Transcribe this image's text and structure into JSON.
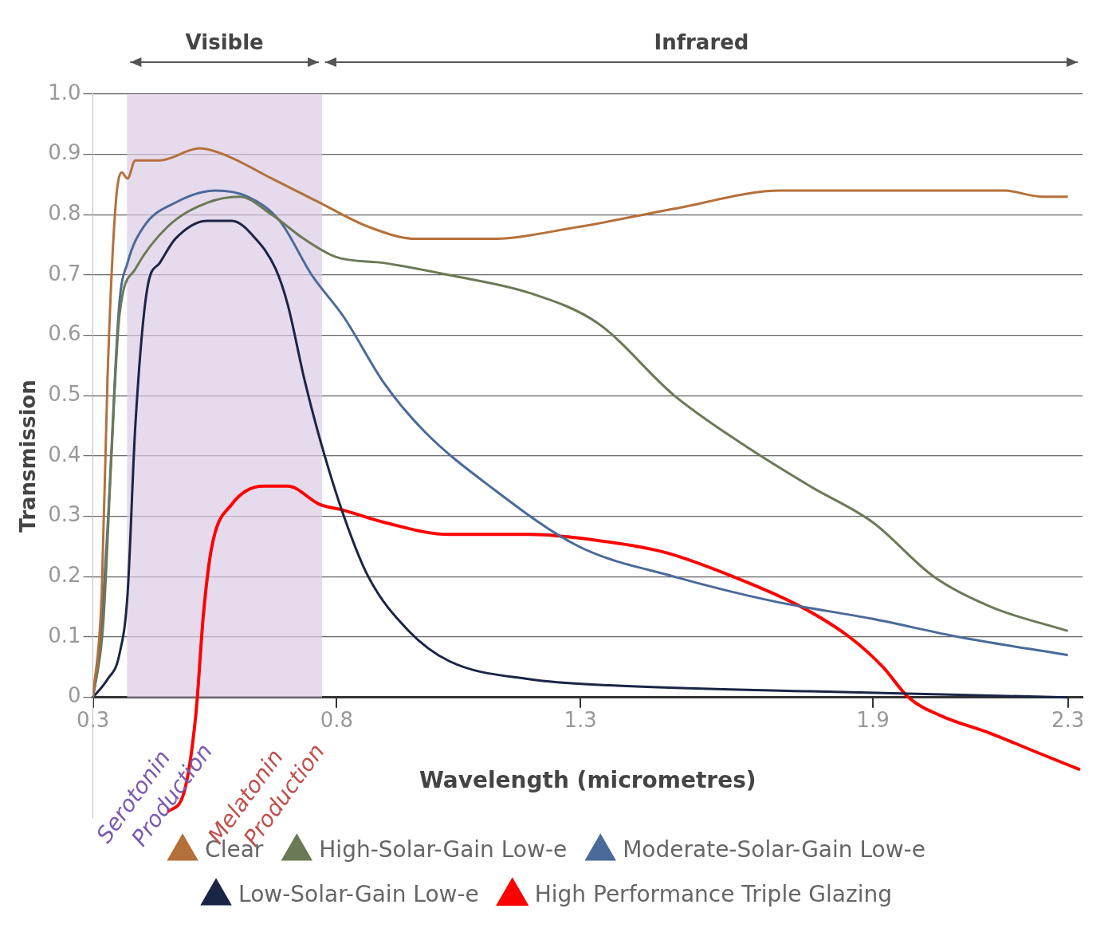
{
  "chart_data": {
    "type": "line",
    "xlabel": "Wavelength (micrometres)",
    "ylabel": "Transmission",
    "xlim": [
      0.3,
      2.33
    ],
    "xticks": [
      0.3,
      0.8,
      1.3,
      1.9,
      2.3
    ],
    "ylim": [
      -0.2,
      1.0
    ],
    "yticks": [
      {
        "value": 0,
        "label": "0"
      },
      0.1,
      0.2,
      0.3,
      0.4,
      0.5,
      0.6,
      0.7,
      0.8,
      0.9,
      {
        "value": 1,
        "label": "1.0"
      }
    ],
    "grid": "y",
    "legend": "bottom",
    "marker": "none",
    "line_style": "solid",
    "bands": [
      {
        "axis": "x",
        "from": 0.37,
        "to": 0.77,
        "label": "Visible",
        "color": "#dccbe6"
      }
    ],
    "annotations": [
      "Infrared",
      "Serotonin Production",
      "Melatonin Production"
    ],
    "series": [
      {
        "name": "Clear",
        "color": "#b5703a",
        "x": [
          0.3,
          0.318,
          0.33,
          0.346,
          0.359,
          0.371,
          0.387,
          0.437,
          0.519,
          0.568,
          0.667,
          0.765,
          0.865,
          0.964,
          1.114,
          1.297,
          1.493,
          1.712,
          1.947,
          2.169,
          2.247,
          2.3
        ],
        "values": [
          0,
          0.17,
          0.53,
          0.81,
          0.87,
          0.86,
          0.89,
          0.89,
          0.91,
          0.9,
          0.86,
          0.82,
          0.78,
          0.76,
          0.76,
          0.78,
          0.81,
          0.84,
          0.84,
          0.84,
          0.83,
          0.83
        ]
      },
      {
        "name": "High-Solar-Gain Low-e",
        "color": "#6b7a55",
        "x": [
          0.3,
          0.321,
          0.338,
          0.354,
          0.387,
          0.453,
          0.535,
          0.601,
          0.667,
          0.733,
          0.799,
          0.898,
          1.031,
          1.197,
          1.336,
          1.493,
          1.632,
          1.771,
          1.9,
          2.025,
          2.142,
          2.3
        ],
        "values": [
          0,
          0.12,
          0.4,
          0.63,
          0.71,
          0.78,
          0.82,
          0.83,
          0.8,
          0.76,
          0.73,
          0.72,
          0.7,
          0.67,
          0.62,
          0.5,
          0.42,
          0.35,
          0.29,
          0.2,
          0.15,
          0.11
        ]
      },
      {
        "name": "Moderate-Solar-Gain Low-e",
        "color": "#4a6a9a",
        "x": [
          0.3,
          0.313,
          0.33,
          0.354,
          0.371,
          0.404,
          0.469,
          0.551,
          0.617,
          0.683,
          0.749,
          0.815,
          0.898,
          0.981,
          1.114,
          1.297,
          1.493,
          1.692,
          1.9,
          2.077,
          2.3
        ],
        "values": [
          0,
          0.07,
          0.28,
          0.65,
          0.72,
          0.78,
          0.82,
          0.84,
          0.83,
          0.79,
          0.7,
          0.63,
          0.52,
          0.44,
          0.35,
          0.25,
          0.2,
          0.16,
          0.13,
          0.1,
          0.07
        ]
      },
      {
        "name": "Low-Solar-Gain Low-e",
        "color": "#1a2545",
        "x": [
          0.3,
          0.33,
          0.354,
          0.371,
          0.387,
          0.412,
          0.437,
          0.469,
          0.535,
          0.585,
          0.634,
          0.675,
          0.7,
          0.733,
          0.765,
          0.815,
          0.865,
          0.948,
          1.031,
          1.197,
          1.359,
          1.771,
          2.3
        ],
        "values": [
          0,
          0.03,
          0.07,
          0.17,
          0.45,
          0.68,
          0.72,
          0.76,
          0.79,
          0.79,
          0.76,
          0.71,
          0.65,
          0.53,
          0.43,
          0.3,
          0.2,
          0.11,
          0.06,
          0.03,
          0.02,
          0.01,
          0
        ]
      },
      {
        "name": "High Performance Triple Glazing",
        "color": "#ff0000",
        "x": [
          0.453,
          0.486,
          0.511,
          0.527,
          0.544,
          0.585,
          0.65,
          0.7,
          0.765,
          0.815,
          0.898,
          1.031,
          1.197,
          1.336,
          1.475,
          1.614,
          1.753,
          1.852,
          1.921,
          1.973,
          2.038,
          2.142,
          2.233,
          2.325
        ],
        "values": [
          -0.19,
          -0.16,
          -0.03,
          0.14,
          0.25,
          0.32,
          0.35,
          0.35,
          0.32,
          0.31,
          0.29,
          0.27,
          0.27,
          0.26,
          0.24,
          0.2,
          0.15,
          0.1,
          0.05,
          0,
          -0.03,
          -0.06,
          -0.09,
          -0.12
        ]
      }
    ]
  }
}
